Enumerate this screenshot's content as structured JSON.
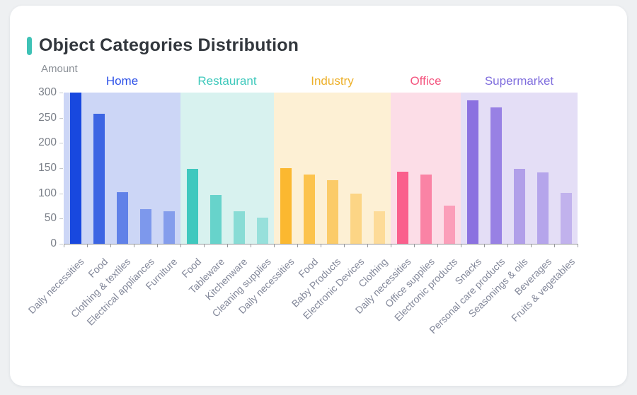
{
  "page": {
    "background_color": "#eef0f2",
    "card_color": "#ffffff"
  },
  "header": {
    "title": "Object Categories Distribution",
    "accent_color": "#3ec2b6"
  },
  "chart_data": {
    "type": "bar",
    "title": "Object Categories Distribution",
    "xlabel": "",
    "ylabel": "Amount",
    "ylim": [
      0,
      300
    ],
    "yticks": [
      300,
      250,
      200,
      150,
      100,
      50,
      0
    ],
    "grid": false,
    "legend_position": "top",
    "axis_color": "#97989c",
    "groups": [
      {
        "name": "Home",
        "label_color": "#2d51e8",
        "band_color": "#ccd6f6",
        "bar_rgb": "24,72,223",
        "bars": [
          {
            "label": "Daily necessities",
            "value": 300,
            "alpha": 1
          },
          {
            "label": "Food",
            "value": 258,
            "alpha": 0.8
          },
          {
            "label": "Clothing & textiles",
            "value": 103,
            "alpha": 0.6
          },
          {
            "label": "Electrical appliances",
            "value": 69,
            "alpha": 0.44
          },
          {
            "label": "Furniture",
            "value": 64,
            "alpha": 0.4
          }
        ]
      },
      {
        "name": "Restaurant",
        "label_color": "#3fc9bc",
        "band_color": "#d8f2ef",
        "bar_rgb": "63,200,190",
        "bars": [
          {
            "label": "Food",
            "value": 149,
            "alpha": 1
          },
          {
            "label": "Tableware",
            "value": 97,
            "alpha": 0.74
          },
          {
            "label": "Kitchenware",
            "value": 65,
            "alpha": 0.52
          },
          {
            "label": "Cleaning supplies",
            "value": 52,
            "alpha": 0.42
          }
        ]
      },
      {
        "name": "Industry",
        "label_color": "#edb02a",
        "band_color": "#fdf0d4",
        "bar_rgb": "251,184,48",
        "bars": [
          {
            "label": "Daily necessities",
            "value": 150,
            "alpha": 1
          },
          {
            "label": "Food",
            "value": 138,
            "alpha": 0.82
          },
          {
            "label": "Baby Products",
            "value": 126,
            "alpha": 0.66
          },
          {
            "label": "Electronic Devices",
            "value": 99,
            "alpha": 0.48
          },
          {
            "label": "Clothing",
            "value": 64,
            "alpha": 0.36
          }
        ]
      },
      {
        "name": "Office",
        "label_color": "#f4547e",
        "band_color": "#fcdde7",
        "bar_rgb": "250,95,140",
        "bars": [
          {
            "label": "Daily necessities",
            "value": 143,
            "alpha": 1
          },
          {
            "label": "Office supplies",
            "value": 138,
            "alpha": 0.72
          },
          {
            "label": "Electronic products",
            "value": 75,
            "alpha": 0.5
          }
        ]
      },
      {
        "name": "Supermarket",
        "label_color": "#7e6cdd",
        "band_color": "#e4def6",
        "bar_rgb": "139,113,224",
        "bars": [
          {
            "label": "Snacks",
            "value": 285,
            "alpha": 1
          },
          {
            "label": "Personal care products",
            "value": 271,
            "alpha": 0.85
          },
          {
            "label": "Seasonings & oils",
            "value": 149,
            "alpha": 0.58
          },
          {
            "label": "Beverages",
            "value": 141,
            "alpha": 0.52
          },
          {
            "label": "Fruits & vegetables",
            "value": 101,
            "alpha": 0.4
          }
        ]
      }
    ]
  }
}
